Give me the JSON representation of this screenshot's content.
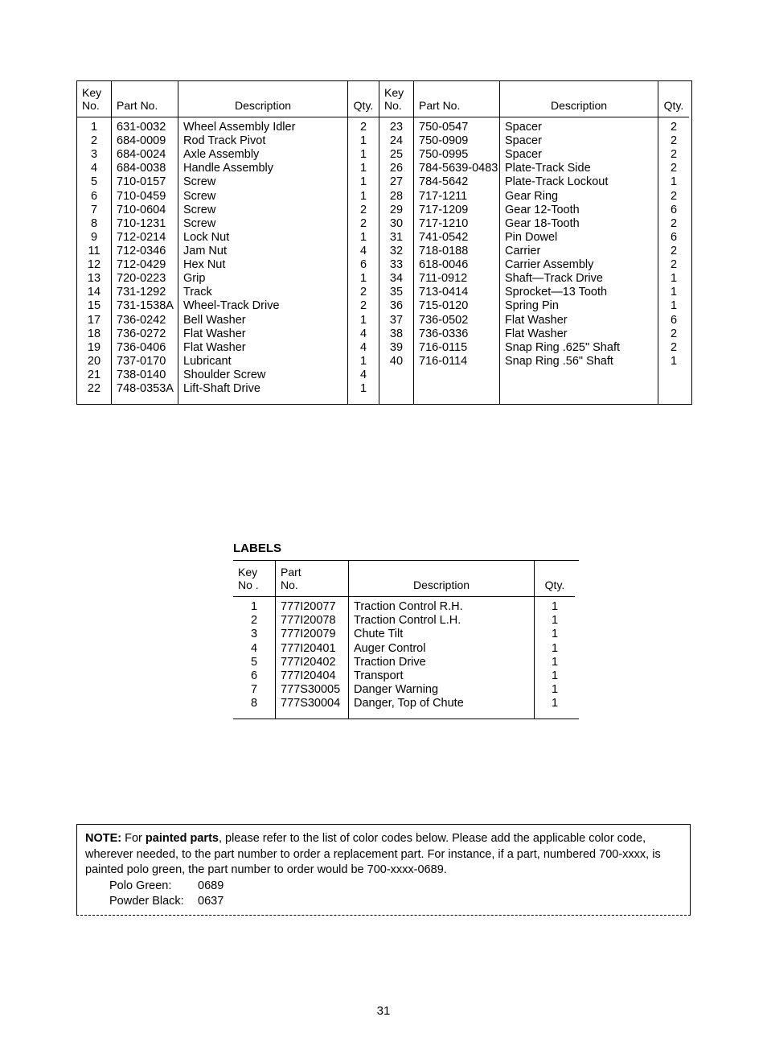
{
  "parts": {
    "headers": {
      "key": "Key\nNo.",
      "part": "Part No.",
      "desc": "Description",
      "qty": "Qty."
    },
    "left": [
      {
        "key": "1",
        "part": "631-0032",
        "desc": "Wheel Assembly Idler",
        "qty": "2"
      },
      {
        "key": "2",
        "part": "684-0009",
        "desc": "Rod Track Pivot",
        "qty": "1"
      },
      {
        "key": "3",
        "part": "684-0024",
        "desc": "Axle Assembly",
        "qty": "1"
      },
      {
        "key": "4",
        "part": "684-0038",
        "desc": "Handle Assembly",
        "qty": "1"
      },
      {
        "key": "5",
        "part": "710-0157",
        "desc": "Screw",
        "qty": "1"
      },
      {
        "key": "6",
        "part": "710-0459",
        "desc": "Screw",
        "qty": "1"
      },
      {
        "key": "7",
        "part": "710-0604",
        "desc": "Screw",
        "qty": "2"
      },
      {
        "key": "8",
        "part": "710-1231",
        "desc": "Screw",
        "qty": "2"
      },
      {
        "key": "9",
        "part": "712-0214",
        "desc": "Lock Nut",
        "qty": "1"
      },
      {
        "key": "11",
        "part": "712-0346",
        "desc": "Jam Nut",
        "qty": "4"
      },
      {
        "key": "12",
        "part": "712-0429",
        "desc": "Hex Nut",
        "qty": "6"
      },
      {
        "key": "13",
        "part": "720-0223",
        "desc": "Grip",
        "qty": "1"
      },
      {
        "key": "14",
        "part": "731-1292",
        "desc": "Track",
        "qty": "2"
      },
      {
        "key": "15",
        "part": "731-1538A",
        "desc": "Wheel-Track Drive",
        "qty": "2"
      },
      {
        "key": "17",
        "part": "736-0242",
        "desc": "Bell Washer",
        "qty": "1"
      },
      {
        "key": "18",
        "part": "736-0272",
        "desc": "Flat Washer",
        "qty": "4"
      },
      {
        "key": "19",
        "part": "736-0406",
        "desc": "Flat Washer",
        "qty": "4"
      },
      {
        "key": "20",
        "part": "737-0170",
        "desc": "Lubricant",
        "qty": "1"
      },
      {
        "key": "21",
        "part": "738-0140",
        "desc": "Shoulder Screw",
        "qty": "4"
      },
      {
        "key": "22",
        "part": "748-0353A",
        "desc": "Lift-Shaft Drive",
        "qty": "1"
      }
    ],
    "right": [
      {
        "key": "23",
        "part": "750-0547",
        "desc": "Spacer",
        "qty": "2"
      },
      {
        "key": "24",
        "part": "750-0909",
        "desc": "Spacer",
        "qty": "2"
      },
      {
        "key": "25",
        "part": "750-0995",
        "desc": "Spacer",
        "qty": "2"
      },
      {
        "key": "26",
        "part": "784-5639-0483",
        "desc": "Plate-Track Side",
        "qty": "2"
      },
      {
        "key": "27",
        "part": "784-5642",
        "desc": "Plate-Track Lockout",
        "qty": "1"
      },
      {
        "key": "28",
        "part": "717-1211",
        "desc": "Gear Ring",
        "qty": "2"
      },
      {
        "key": "29",
        "part": "717-1209",
        "desc": "Gear 12-Tooth",
        "qty": "6"
      },
      {
        "key": "30",
        "part": "717-1210",
        "desc": "Gear 18-Tooth",
        "qty": "2"
      },
      {
        "key": "31",
        "part": "741-0542",
        "desc": "Pin Dowel",
        "qty": "6"
      },
      {
        "key": "32",
        "part": "718-0188",
        "desc": "Carrier",
        "qty": "2"
      },
      {
        "key": "33",
        "part": "618-0046",
        "desc": "Carrier Assembly",
        "qty": "2"
      },
      {
        "key": "34",
        "part": "711-0912",
        "desc": "Shaft—Track Drive",
        "qty": "1"
      },
      {
        "key": "35",
        "part": "713-0414",
        "desc": "Sprocket—13 Tooth",
        "qty": "1"
      },
      {
        "key": "36",
        "part": "715-0120",
        "desc": "Spring Pin",
        "qty": "1"
      },
      {
        "key": "37",
        "part": "736-0502",
        "desc": "Flat Washer",
        "qty": "6"
      },
      {
        "key": "38",
        "part": "736-0336",
        "desc": "Flat Washer",
        "qty": "2"
      },
      {
        "key": "39",
        "part": "716-0115",
        "desc": "Snap Ring .625\" Shaft",
        "qty": "2"
      },
      {
        "key": "40",
        "part": "716-0114",
        "desc": "Snap Ring .56\" Shaft",
        "qty": "1"
      }
    ],
    "col_widths": {
      "key": 42,
      "part": 82,
      "desc": 210,
      "qty": 38,
      "part_r": 106,
      "desc_r": 196
    }
  },
  "labels": {
    "heading": "LABELS",
    "headers": {
      "key": "Key\nNo .",
      "part": "Part\nNo.",
      "desc": "Description",
      "qty": "Qty."
    },
    "rows": [
      {
        "key": "1",
        "part": "777I20077",
        "desc": "Traction Control R.H.",
        "qty": "1"
      },
      {
        "key": "2",
        "part": "777I20078",
        "desc": "Traction Control L.H.",
        "qty": "1"
      },
      {
        "key": "3",
        "part": "777I20079",
        "desc": "Chute Tilt",
        "qty": "1"
      },
      {
        "key": "4",
        "part": "777I20401",
        "desc": "Auger Control",
        "qty": "1"
      },
      {
        "key": "5",
        "part": "777I20402",
        "desc": "Traction Drive",
        "qty": "1"
      },
      {
        "key": "6",
        "part": "777I20404",
        "desc": "Transport",
        "qty": "1"
      },
      {
        "key": "7",
        "part": "777S30005",
        "desc": "Danger Warning",
        "qty": "1"
      },
      {
        "key": "8",
        "part": "777S30004",
        "desc": "Danger, Top of Chute",
        "qty": "1"
      }
    ],
    "col_widths": {
      "key": 52,
      "part": 90,
      "desc": 230,
      "qty": 50
    }
  },
  "note": {
    "lead": "NOTE:",
    "body": " For <b>painted parts</b>, please refer to the list of color codes below. Please add the applicable color code, wherever needed, to the part number to order a replacement part. For instance, if a part, numbered 700-xxxx, is painted polo green, the part number to order would be 700-xxxx-0689.",
    "codes": [
      {
        "name": "Polo Green:",
        "code": "0689"
      },
      {
        "name": "Powder Black:",
        "code": "0637"
      }
    ]
  },
  "page_number": "31",
  "colors": {
    "text": "#000000",
    "bg": "#ffffff",
    "border": "#000000"
  }
}
